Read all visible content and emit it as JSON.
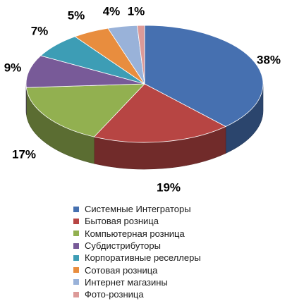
{
  "chart_data": {
    "type": "pie",
    "style": "3d",
    "legend_position": "bottom",
    "slices": [
      {
        "label": "Системные Интеграторы",
        "value": 38,
        "value_label": "38%",
        "color": "#4670b0"
      },
      {
        "label": "Бытовая розница",
        "value": 19,
        "value_label": "19%",
        "color": "#b74543"
      },
      {
        "label": "Компьютерная розница",
        "value": 17,
        "value_label": "17%",
        "color": "#92b050"
      },
      {
        "label": "Субдистрибуторы",
        "value": 9,
        "value_label": "9%",
        "color": "#785a98"
      },
      {
        "label": "Корпоративные реселлеры",
        "value": 7,
        "value_label": "7%",
        "color": "#3d9db5"
      },
      {
        "label": "Сотовая розница",
        "value": 5,
        "value_label": "5%",
        "color": "#e88d3e"
      },
      {
        "label": "Интернет магазины",
        "value": 4,
        "value_label": "4%",
        "color": "#99b2d9"
      },
      {
        "label": "Фото-розница",
        "value": 1,
        "value_label": "1%",
        "color": "#dc9a98"
      }
    ]
  }
}
